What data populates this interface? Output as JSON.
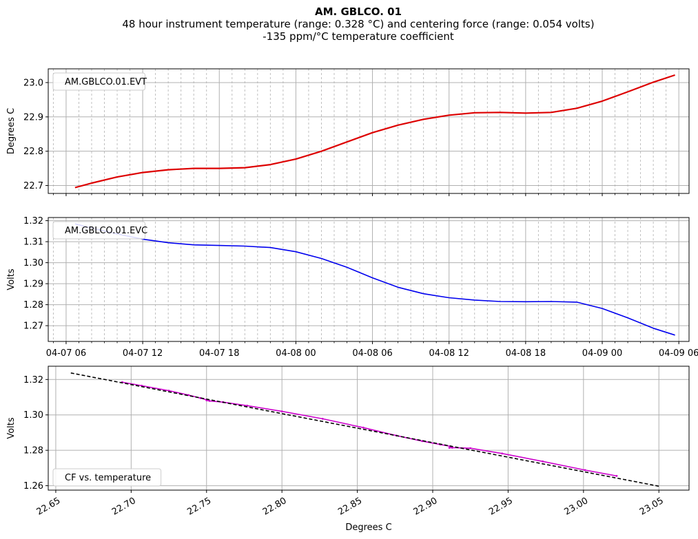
{
  "figure": {
    "title": "AM. GBLCO. 01",
    "subtitle": "48 hour instrument temperature (range: 0.328 °C) and centering force (range: 0.054 volts)",
    "subtitle2": "-135 ppm/°C temperature coefficient"
  },
  "chart_data": [
    {
      "type": "line",
      "ylabel": "Degrees C",
      "xlabel": "",
      "legend": "AM.GBLCO.01.EVT",
      "legend_position": "top-left",
      "color": "#dd0000",
      "x_unit": "hours from 04-07 00:00",
      "xlim": [
        4.6,
        54.8
      ],
      "ylim": [
        22.677,
        23.04
      ],
      "yticks": [
        22.7,
        22.8,
        22.9,
        23.0
      ],
      "ytick_labels": [
        "22.7",
        "22.8",
        "22.9",
        "23.0"
      ],
      "xticks": [
        6,
        12,
        18,
        24,
        30,
        36,
        42,
        48,
        54
      ],
      "xtick_labels": [],
      "grid": true,
      "series": [
        {
          "x": [
            6.7,
            8,
            10,
            12,
            14,
            16,
            18,
            20,
            22,
            24,
            26,
            28,
            30,
            32,
            34,
            36,
            38,
            40,
            42,
            44,
            46,
            48,
            50,
            52,
            53.7
          ],
          "y": [
            22.694,
            22.707,
            22.725,
            22.738,
            22.746,
            22.75,
            22.75,
            22.752,
            22.761,
            22.777,
            22.8,
            22.827,
            22.854,
            22.876,
            22.893,
            22.905,
            22.912,
            22.913,
            22.911,
            22.913,
            22.925,
            22.946,
            22.973,
            23.001,
            23.022
          ]
        }
      ]
    },
    {
      "type": "line",
      "ylabel": "Volts",
      "xlabel": "",
      "legend": "AM.GBLCO.01.EVC",
      "legend_position": "top-left",
      "color": "#0000ee",
      "x_unit": "hours from 04-07 00:00",
      "xlim": [
        4.6,
        54.8
      ],
      "ylim": [
        1.2625,
        1.3215
      ],
      "yticks": [
        1.27,
        1.28,
        1.29,
        1.3,
        1.31,
        1.32
      ],
      "ytick_labels": [
        "1.27",
        "1.28",
        "1.29",
        "1.30",
        "1.31",
        "1.32"
      ],
      "xticks": [
        6,
        12,
        18,
        24,
        30,
        36,
        42,
        48,
        54
      ],
      "xtick_labels": [
        "04-07 06",
        "04-07 12",
        "04-07 18",
        "04-08 00",
        "04-08 06",
        "04-08 12",
        "04-08 18",
        "04-09 00",
        "04-09 06"
      ],
      "grid": true,
      "series": [
        {
          "x": [
            6.7,
            8,
            10,
            12,
            14,
            16,
            18,
            20,
            22,
            24,
            26,
            28,
            30,
            32,
            34,
            36,
            38,
            40,
            42,
            44,
            46,
            48,
            50,
            52,
            53.7
          ],
          "y": [
            1.3185,
            1.3165,
            1.3137,
            1.3112,
            1.3095,
            1.3085,
            1.3082,
            1.3079,
            1.3072,
            1.3052,
            1.302,
            1.2978,
            1.2928,
            1.2883,
            1.2852,
            1.2833,
            1.2822,
            1.2815,
            1.2814,
            1.2815,
            1.2812,
            1.2782,
            1.2737,
            1.2688,
            1.2655
          ]
        }
      ]
    },
    {
      "type": "scatter",
      "ylabel": "Volts",
      "xlabel": "Degrees C",
      "legend": "CF vs. temperature",
      "legend_position": "bottom-left",
      "xlim": [
        22.645,
        23.07
      ],
      "ylim": [
        1.2575,
        1.3275
      ],
      "xticks": [
        22.65,
        22.7,
        22.75,
        22.8,
        22.85,
        22.9,
        22.95,
        23.0,
        23.05
      ],
      "xtick_labels": [
        "22.65",
        "22.70",
        "22.75",
        "22.80",
        "22.85",
        "22.90",
        "22.95",
        "23.00",
        "23.05"
      ],
      "yticks": [
        1.26,
        1.28,
        1.3,
        1.32
      ],
      "ytick_labels": [
        "1.26",
        "1.28",
        "1.30",
        "1.32"
      ],
      "grid": true,
      "series": [
        {
          "style": "points",
          "color": "#cc00cc",
          "x": [
            22.694,
            22.707,
            22.725,
            22.738,
            22.746,
            22.75,
            22.75,
            22.752,
            22.761,
            22.777,
            22.8,
            22.827,
            22.854,
            22.876,
            22.893,
            22.905,
            22.912,
            22.913,
            22.911,
            22.913,
            22.925,
            22.946,
            22.973,
            23.001,
            23.022
          ],
          "y": [
            1.3185,
            1.3165,
            1.3137,
            1.3112,
            1.3095,
            1.3085,
            1.3082,
            1.3079,
            1.3072,
            1.3052,
            1.302,
            1.2978,
            1.2928,
            1.2883,
            1.2852,
            1.2833,
            1.2822,
            1.2815,
            1.2814,
            1.2815,
            1.2812,
            1.2782,
            1.2737,
            1.2688,
            1.2655
          ]
        },
        {
          "style": "dashed-fit",
          "color": "#000000",
          "x": [
            22.66,
            23.05
          ],
          "y": [
            1.3237,
            1.2597
          ]
        }
      ]
    }
  ]
}
